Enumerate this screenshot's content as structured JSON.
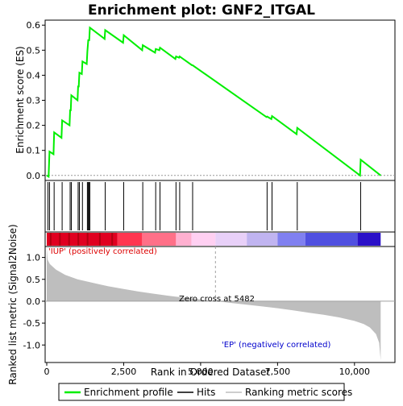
{
  "chart_data": {
    "type": "line",
    "title": "Enrichment plot: GNF2_ITGAL",
    "x_axis": {
      "label": "Rank in Ordered Dataset",
      "range": [
        0,
        11000
      ],
      "ticks": [
        0,
        2500,
        5000,
        7500,
        10000
      ],
      "tick_labels": [
        "0",
        "2,500",
        "5,000",
        "7,500",
        "10,000"
      ]
    },
    "es_panel": {
      "ylabel": "Enrichment score (ES)",
      "ylim": [
        -0.02,
        0.62
      ],
      "yticks": [
        0.0,
        0.1,
        0.2,
        0.3,
        0.4,
        0.5,
        0.6
      ],
      "ytick_labels": [
        "0.0",
        "0.1",
        "0.2",
        "0.3",
        "0.4",
        "0.5",
        "0.6"
      ],
      "series_name": "Enrichment profile",
      "points": [
        [
          0,
          0.0
        ],
        [
          60,
          -0.005
        ],
        [
          90,
          0.095
        ],
        [
          220,
          0.085
        ],
        [
          240,
          0.172
        ],
        [
          480,
          0.15
        ],
        [
          500,
          0.22
        ],
        [
          740,
          0.2
        ],
        [
          760,
          0.26
        ],
        [
          780,
          0.26
        ],
        [
          800,
          0.32
        ],
        [
          1000,
          0.3
        ],
        [
          1020,
          0.355
        ],
        [
          1040,
          0.355
        ],
        [
          1060,
          0.41
        ],
        [
          1140,
          0.405
        ],
        [
          1160,
          0.455
        ],
        [
          1300,
          0.445
        ],
        [
          1320,
          0.495
        ],
        [
          1350,
          0.54
        ],
        [
          1380,
          0.54
        ],
        [
          1400,
          0.59
        ],
        [
          1880,
          0.545
        ],
        [
          1900,
          0.58
        ],
        [
          2480,
          0.53
        ],
        [
          2500,
          0.56
        ],
        [
          3100,
          0.5
        ],
        [
          3120,
          0.52
        ],
        [
          3520,
          0.49
        ],
        [
          3540,
          0.505
        ],
        [
          3660,
          0.5
        ],
        [
          3680,
          0.51
        ],
        [
          4180,
          0.465
        ],
        [
          4200,
          0.475
        ],
        [
          4300,
          0.47
        ],
        [
          4320,
          0.475
        ],
        [
          4720,
          0.44
        ],
        [
          4740,
          0.44
        ],
        [
          7140,
          0.233
        ],
        [
          7160,
          0.235
        ],
        [
          7300,
          0.225
        ],
        [
          7320,
          0.237
        ],
        [
          8120,
          0.165
        ],
        [
          8140,
          0.19
        ],
        [
          10180,
          0.0
        ],
        [
          10200,
          0.063
        ],
        [
          10850,
          0.0
        ]
      ]
    },
    "hits": [
      40,
      90,
      240,
      500,
      760,
      800,
      1020,
      1060,
      1160,
      1320,
      1350,
      1380,
      1400,
      1900,
      2500,
      3120,
      3540,
      3680,
      4200,
      4320,
      4740,
      7160,
      7320,
      8140,
      10200
    ],
    "ranking_panel": {
      "ylabel": "Ranked list metric (Signal2Noise)",
      "ylim": [
        -1.4,
        1.25
      ],
      "yticks": [
        1.0,
        0.5,
        0.0,
        -0.5,
        -1.0
      ],
      "ytick_labels": [
        "1.0",
        "0.5",
        "0.0",
        "-0.5",
        "-1.0"
      ],
      "series_name": "Ranking metric scores",
      "points": [
        [
          0,
          1.2
        ],
        [
          30,
          0.95
        ],
        [
          100,
          0.85
        ],
        [
          300,
          0.72
        ],
        [
          600,
          0.6
        ],
        [
          1000,
          0.5
        ],
        [
          1500,
          0.42
        ],
        [
          2000,
          0.34
        ],
        [
          2500,
          0.28
        ],
        [
          3000,
          0.22
        ],
        [
          3500,
          0.17
        ],
        [
          4000,
          0.12
        ],
        [
          4500,
          0.08
        ],
        [
          5000,
          0.04
        ],
        [
          5482,
          0.0
        ],
        [
          6000,
          -0.04
        ],
        [
          6500,
          -0.08
        ],
        [
          7000,
          -0.12
        ],
        [
          7500,
          -0.16
        ],
        [
          8000,
          -0.21
        ],
        [
          8500,
          -0.26
        ],
        [
          9000,
          -0.31
        ],
        [
          9500,
          -0.37
        ],
        [
          10000,
          -0.45
        ],
        [
          10300,
          -0.52
        ],
        [
          10500,
          -0.6
        ],
        [
          10700,
          -0.75
        ],
        [
          10800,
          -0.95
        ],
        [
          10850,
          -1.35
        ]
      ],
      "zero_cross_label": "Zero cross at 5482",
      "zero_cross_rank": 5482,
      "up_label": "'IUP' (positively correlated)",
      "down_label": "'EP' (negatively correlated)"
    },
    "colors": {
      "profile": "#00ee00",
      "hits": "#000000",
      "metric_fill": "#bebebe",
      "zero_line": "#a0a0a0",
      "up_text": "#dd0000",
      "down_text": "#0000cc",
      "heat_bands": [
        "#e00020",
        "#ff3650",
        "#ff7088",
        "#ffb0d0",
        "#ffd0f2",
        "#e8d0f8",
        "#c0b4f0",
        "#8080f0",
        "#5050e0",
        "#2a10c8"
      ]
    },
    "legend": {
      "placement": "bottom",
      "items": [
        {
          "label": "Enrichment profile",
          "kind": "green-line"
        },
        {
          "label": "Hits",
          "kind": "black-line"
        },
        {
          "label": "Ranking metric scores",
          "kind": "gray-line"
        }
      ]
    }
  }
}
